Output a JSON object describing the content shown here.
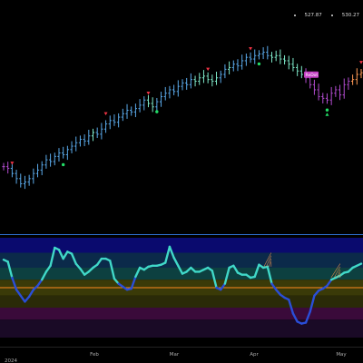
{
  "header": {
    "price_a": "527.87",
    "price_b": "530.27"
  },
  "chart_data": [
    {
      "type": "candlestick",
      "title": "",
      "x_ticks": [
        "Feb",
        "Mar",
        "Apr",
        "May"
      ],
      "year_label": "2024",
      "annotation": "ReDot",
      "colors": {
        "background": "#000000",
        "bull": "#5aa8e8",
        "mint": "#7ee8c8",
        "bear": "#b24ccf",
        "orange": "#ff9955",
        "signal_up": "#22dd66",
        "signal_down": "#ee3344"
      },
      "closes": [
        462,
        461,
        458,
        455,
        452,
        453,
        455,
        458,
        460,
        463,
        466,
        465,
        468,
        470,
        469,
        472,
        474,
        476,
        478,
        477,
        480,
        482,
        481,
        484,
        487,
        489,
        488,
        491,
        493,
        495,
        494,
        496,
        498,
        501,
        499,
        497,
        500,
        503,
        505,
        507,
        506,
        509,
        511,
        510,
        513,
        512,
        514,
        515,
        513,
        512,
        514,
        516,
        519,
        520,
        522,
        521,
        524,
        526,
        525,
        527,
        528,
        529,
        527,
        526,
        527,
        525,
        524,
        522,
        520,
        518,
        516,
        514,
        510,
        507,
        503,
        502,
        501,
        505,
        507,
        504,
        510,
        512,
        513,
        516,
        517
      ],
      "bar_colors": [
        "bear",
        "bear",
        "bull",
        "bull",
        "bull",
        "bull",
        "bull",
        "bull",
        "bull",
        "bull",
        "bull",
        "bull",
        "bull",
        "bull",
        "bull",
        "bull",
        "bull",
        "bull",
        "bull",
        "bull",
        "bull",
        "mint",
        "bull",
        "bull",
        "bull",
        "bull",
        "bull",
        "bull",
        "bull",
        "bull",
        "bull",
        "bull",
        "bull",
        "bull",
        "mint",
        "mint",
        "bull",
        "bull",
        "bull",
        "bull",
        "bull",
        "bull",
        "bull",
        "bull",
        "bull",
        "mint",
        "mint",
        "mint",
        "mint",
        "mint",
        "mint",
        "bull",
        "bull",
        "mint",
        "bull",
        "bull",
        "bull",
        "bull",
        "bull",
        "bull",
        "bull",
        "bull",
        "bull",
        "mint",
        "mint",
        "mint",
        "mint",
        "mint",
        "mint",
        "mint",
        "mint",
        "bear",
        "bear",
        "bear",
        "bear",
        "bear",
        "bear",
        "bear",
        "bear",
        "bear",
        "bear",
        "bear",
        "orange",
        "orange",
        "orange"
      ],
      "signals_down_at_index": [
        2,
        24,
        34,
        48,
        58,
        84
      ],
      "signals_up_at_index": [
        14,
        36,
        60,
        76
      ]
    },
    {
      "type": "line",
      "title": "",
      "ylim": [
        0,
        100
      ],
      "bands": [
        {
          "from": 85,
          "to": 100,
          "color": "#0a0a6e"
        },
        {
          "from": 70,
          "to": 85,
          "color": "#0b2a4a"
        },
        {
          "from": 58,
          "to": 70,
          "color": "#0d4040"
        },
        {
          "from": 42,
          "to": 58,
          "color": "#3a3a08"
        },
        {
          "from": 30,
          "to": 42,
          "color": "#2a2a08"
        },
        {
          "from": 18,
          "to": 30,
          "color": "#3a0a3a"
        },
        {
          "from": 0,
          "to": 18,
          "color": "#1a0a26"
        }
      ],
      "midline": 50,
      "series": [
        {
          "values": [
            78,
            76,
            60,
            48,
            42,
            36,
            41,
            48,
            52,
            58,
            66,
            72,
            90,
            88,
            79,
            86,
            84,
            74,
            69,
            63,
            66,
            70,
            73,
            79,
            79,
            77,
            59,
            54,
            51,
            48,
            49,
            61,
            70,
            68,
            71,
            72,
            72,
            73,
            75,
            91,
            80,
            72,
            64,
            66,
            70,
            66,
            66,
            68,
            70,
            67,
            50,
            48,
            54,
            70,
            72,
            65,
            63,
            63,
            60,
            61,
            73,
            70,
            71,
            54,
            48,
            43,
            40,
            38,
            24,
            16,
            14,
            15,
            26,
            42,
            47,
            49,
            52,
            58,
            60,
            62,
            65,
            66,
            70,
            72,
            74
          ]
        }
      ]
    }
  ]
}
